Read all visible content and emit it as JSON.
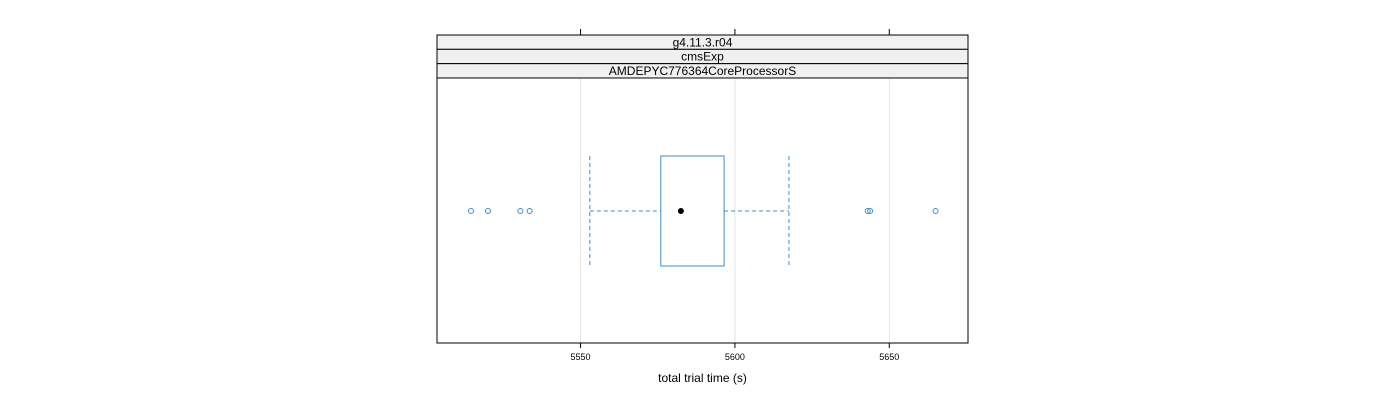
{
  "strips": [
    "g4.11.3.r04",
    "cmsExp",
    "AMDEPYC776364CoreProcessorS"
  ],
  "colors": {
    "box": "#0080ff",
    "box_draw": "#3b8fce",
    "median_dot": "#000000",
    "strip_bg": "#f0f0f0",
    "grid": "#e6e6e6",
    "frame": "#000000"
  },
  "chart_data": {
    "type": "boxplot",
    "orientation": "horizontal",
    "xlabel": "total trial time (s)",
    "x_ticks": [
      5550,
      5600,
      5650
    ],
    "x_tick_labels": [
      "5550",
      "5600",
      "5650"
    ],
    "xlim": [
      5503.5,
      5675.5
    ],
    "grid": "vertical",
    "box": {
      "whisker_low": 5553,
      "q1": 5576,
      "median": 5582.5,
      "q3": 5596.5,
      "whisker_high": 5617.5
    },
    "outliers": [
      5514.5,
      5520,
      5530.5,
      5533.5,
      5643,
      5643.8,
      5665
    ]
  }
}
